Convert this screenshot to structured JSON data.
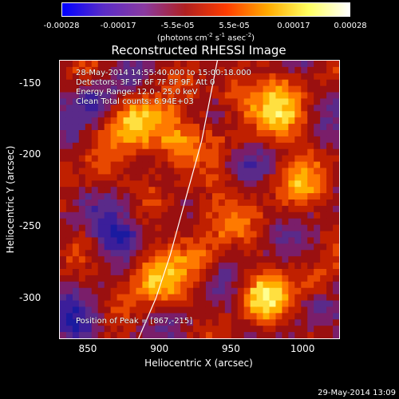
{
  "colorbar": {
    "ticks": [
      "-0.00028",
      "-0.00017",
      "-5.5e-05",
      "5.5e-05",
      "0.00017",
      "0.00028"
    ],
    "tick_values": [
      -0.00028,
      -0.00017,
      -5.5e-05,
      5.5e-05,
      0.00017,
      0.00028
    ],
    "units_prefix": "(photons cm",
    "units_exp1": "-2",
    "units_mid": " s",
    "units_exp2": "-1",
    "units_mid2": " asec",
    "units_exp3": "-2",
    "units_suffix": ")",
    "colors": [
      "#0000ff",
      "#5a2cc8",
      "#8a3aa0",
      "#b02020",
      "#ff3c00",
      "#ffaa00",
      "#ffff60",
      "#ffffff"
    ]
  },
  "chart_data": {
    "type": "heatmap",
    "title": "Reconstructed RHESSI Image",
    "xlabel": "Heliocentric X (arcsec)",
    "ylabel": "Heliocentric Y (arcsec)",
    "xlim": [
      830,
      1025
    ],
    "ylim": [
      -328,
      -134
    ],
    "xticks": [
      850,
      900,
      950,
      1000
    ],
    "yticks": [
      -150,
      -200,
      -250,
      -300
    ],
    "xtick_labels": [
      "850",
      "900",
      "950",
      "1000"
    ],
    "ytick_labels": [
      "-150",
      "-200",
      "-250",
      "-300"
    ],
    "vmin": -0.00028,
    "vmax": 0.00028,
    "peak": [
      867,
      -215
    ],
    "limb_line": [
      [
        885,
        -328
      ],
      [
        897,
        -300
      ],
      [
        907,
        -270
      ],
      [
        918,
        -230
      ],
      [
        929,
        -190
      ],
      [
        940,
        -134
      ]
    ],
    "annotations": {
      "line1": "28-May-2014 14:55:40.000 to 15:00:18.000",
      "line2": "Detectors: 3F 5F 6F 7F 8F 9F, Att 0",
      "line3": "Energy Range: 12.0 - 25.0 keV",
      "line4": "Clean    Total counts: 6.94E+03",
      "peak_text": "Position of Peak = [867,-215]"
    }
  },
  "timestamp": "29-May-2014 13:09"
}
